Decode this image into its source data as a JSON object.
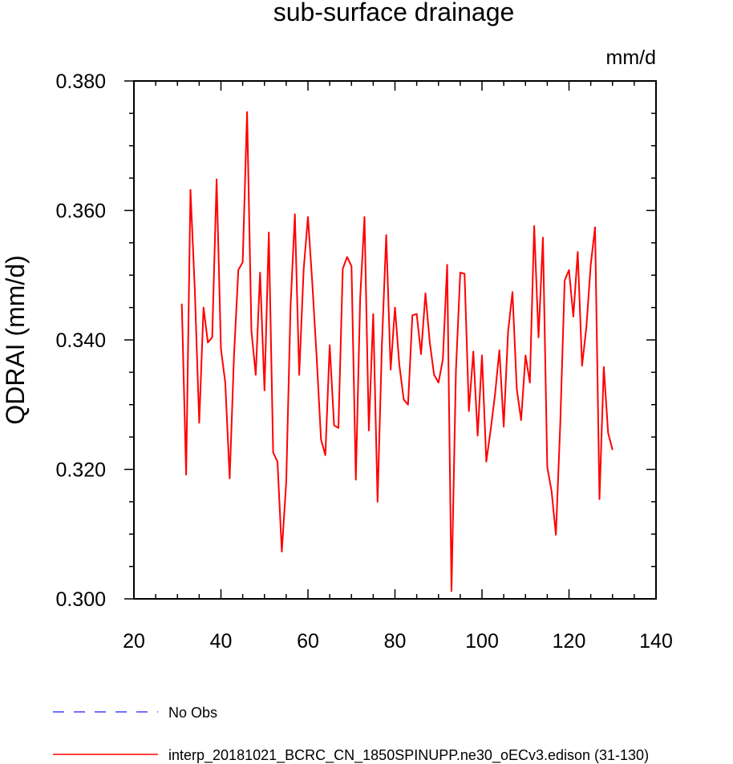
{
  "chart_data": {
    "type": "line",
    "title": "sub-surface drainage",
    "units_label": "mm/d",
    "ylabel": "QDRAI  (mm/d)",
    "xlabel": "",
    "xlim": [
      20,
      140
    ],
    "ylim": [
      0.3,
      0.38
    ],
    "x_ticks": [
      20,
      40,
      60,
      80,
      100,
      120,
      140
    ],
    "x_tick_labels": [
      "20",
      "40",
      "60",
      "80",
      "100",
      "120",
      "140"
    ],
    "y_ticks": [
      0.3,
      0.32,
      0.34,
      0.36,
      0.38
    ],
    "y_tick_labels": [
      "0.300",
      "0.320",
      "0.340",
      "0.360",
      "0.380"
    ],
    "grid": false,
    "legend_position": "bottom",
    "legend": [
      {
        "label": "No Obs",
        "color": "#4040ff",
        "style": "dashed"
      },
      {
        "label": "interp_20181021_BCRC_CN_1850SPINUPP.ne30_oECv3.edison (31-130)",
        "color": "#ff0000",
        "style": "solid"
      }
    ],
    "series": [
      {
        "name": "interp_20181021_BCRC_CN_1850SPINUPP.ne30_oECv3.edison (31-130)",
        "color": "#ff0000",
        "x": [
          31,
          32,
          33,
          34,
          35,
          36,
          37,
          38,
          39,
          40,
          41,
          42,
          43,
          44,
          45,
          46,
          47,
          48,
          49,
          50,
          51,
          52,
          53,
          54,
          55,
          56,
          57,
          58,
          59,
          60,
          61,
          62,
          63,
          64,
          65,
          66,
          67,
          68,
          69,
          70,
          71,
          72,
          73,
          74,
          75,
          76,
          77,
          78,
          79,
          80,
          81,
          82,
          83,
          84,
          85,
          86,
          87,
          88,
          89,
          90,
          91,
          92,
          93,
          94,
          95,
          96,
          97,
          98,
          99,
          100,
          101,
          102,
          103,
          104,
          105,
          106,
          107,
          108,
          109,
          110,
          111,
          112,
          113,
          114,
          115,
          116,
          117,
          118,
          119,
          120,
          121,
          122,
          123,
          124,
          125,
          126,
          127,
          128,
          129,
          130
        ],
        "values": [
          0.3456,
          0.3192,
          0.3632,
          0.3478,
          0.3272,
          0.345,
          0.3396,
          0.3404,
          0.3648,
          0.3386,
          0.3334,
          0.3186,
          0.3376,
          0.3508,
          0.352,
          0.3752,
          0.3414,
          0.3346,
          0.3504,
          0.3322,
          0.3566,
          0.3226,
          0.3212,
          0.3073,
          0.318,
          0.3452,
          0.3594,
          0.3346,
          0.3508,
          0.359,
          0.3488,
          0.3372,
          0.3246,
          0.3222,
          0.3392,
          0.3268,
          0.3264,
          0.351,
          0.3528,
          0.3514,
          0.3184,
          0.3464,
          0.359,
          0.326,
          0.344,
          0.315,
          0.3392,
          0.3562,
          0.3354,
          0.345,
          0.3362,
          0.3308,
          0.33,
          0.3438,
          0.344,
          0.3378,
          0.3472,
          0.3396,
          0.3346,
          0.3334,
          0.337,
          0.3516,
          0.3012,
          0.3352,
          0.3504,
          0.3502,
          0.329,
          0.3382,
          0.3252,
          0.3376,
          0.3212,
          0.3262,
          0.3316,
          0.3384,
          0.3266,
          0.3412,
          0.3474,
          0.3324,
          0.3276,
          0.3376,
          0.3334,
          0.3576,
          0.3404,
          0.3558,
          0.3204,
          0.3166,
          0.3099,
          0.327,
          0.3492,
          0.3508,
          0.3436,
          0.3536,
          0.336,
          0.342,
          0.3516,
          0.3574,
          0.3154,
          0.3358,
          0.3256,
          0.323
        ]
      }
    ]
  }
}
